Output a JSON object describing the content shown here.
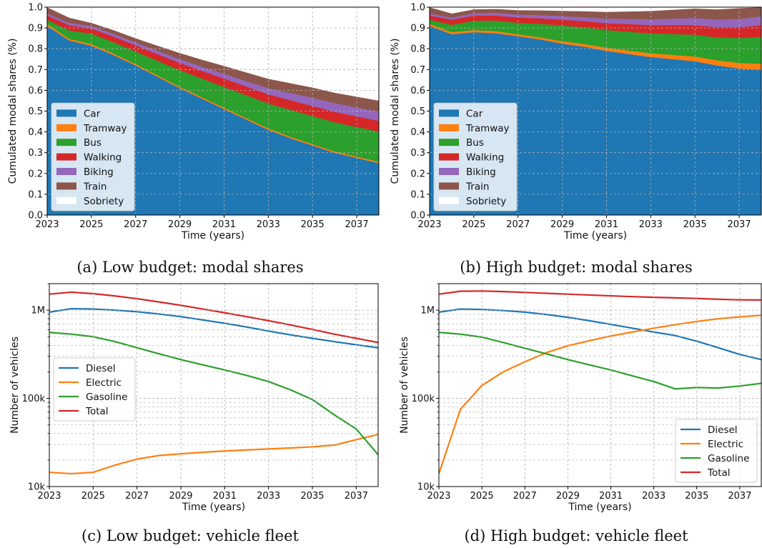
{
  "chart_data": [
    {
      "type": "area",
      "stacked": true,
      "caption": "(a) Low budget: modal shares",
      "xlabel": "Time (years)",
      "ylabel": "Cumulated modal shares (%)",
      "xlim": [
        2023,
        2038
      ],
      "ylim": [
        0,
        1
      ],
      "grid": true,
      "legend_position": "lower-left",
      "x": [
        2023,
        2024,
        2025,
        2026,
        2027,
        2028,
        2029,
        2030,
        2031,
        2032,
        2033,
        2034,
        2035,
        2036,
        2037,
        2038
      ],
      "x_ticks": [
        "2023",
        "2025",
        "2027",
        "2029",
        "2031",
        "2033",
        "2035",
        "2037"
      ],
      "y_ticks": [
        "0.0",
        "0.1",
        "0.2",
        "0.3",
        "0.4",
        "0.5",
        "0.6",
        "0.7",
        "0.8",
        "0.9",
        "1.0"
      ],
      "series": [
        {
          "name": "Car",
          "color": "#1f77b4",
          "values": [
            0.91,
            0.84,
            0.815,
            0.77,
            0.72,
            0.665,
            0.61,
            0.56,
            0.51,
            0.46,
            0.41,
            0.37,
            0.335,
            0.3,
            0.275,
            0.25
          ]
        },
        {
          "name": "Tramway",
          "color": "#ff7f0e",
          "values": [
            0.01,
            0.008,
            0.008,
            0.007,
            0.007,
            0.007,
            0.007,
            0.007,
            0.007,
            0.007,
            0.007,
            0.007,
            0.007,
            0.007,
            0.007,
            0.007
          ]
        },
        {
          "name": "Bus",
          "color": "#2ca02c",
          "values": [
            0.02,
            0.04,
            0.05,
            0.055,
            0.06,
            0.07,
            0.08,
            0.09,
            0.1,
            0.11,
            0.12,
            0.13,
            0.135,
            0.14,
            0.142,
            0.145
          ]
        },
        {
          "name": "Walking",
          "color": "#d62728",
          "values": [
            0.02,
            0.025,
            0.025,
            0.027,
            0.03,
            0.032,
            0.035,
            0.037,
            0.04,
            0.042,
            0.044,
            0.046,
            0.048,
            0.05,
            0.051,
            0.052
          ]
        },
        {
          "name": "Biking",
          "color": "#9467bd",
          "values": [
            0.01,
            0.012,
            0.012,
            0.013,
            0.014,
            0.016,
            0.018,
            0.02,
            0.023,
            0.026,
            0.03,
            0.035,
            0.04,
            0.042,
            0.043,
            0.044
          ]
        },
        {
          "name": "Train",
          "color": "#8c564b",
          "values": [
            0.03,
            0.025,
            0.015,
            0.018,
            0.02,
            0.025,
            0.03,
            0.034,
            0.038,
            0.042,
            0.045,
            0.047,
            0.049,
            0.05,
            0.052,
            0.053
          ]
        },
        {
          "name": "Sobriety",
          "color": "#ffffff",
          "values": [
            0.0,
            0.05,
            0.075,
            0.11,
            0.149,
            0.185,
            0.22,
            0.252,
            0.282,
            0.313,
            0.344,
            0.365,
            0.386,
            0.411,
            0.43,
            0.449
          ]
        }
      ]
    },
    {
      "type": "area",
      "stacked": true,
      "caption": "(b) High budget: modal shares",
      "xlabel": "Time (years)",
      "ylabel": "Cumulated modal shares (%)",
      "xlim": [
        2023,
        2038
      ],
      "ylim": [
        0,
        1
      ],
      "grid": true,
      "legend_position": "lower-left",
      "x": [
        2023,
        2024,
        2025,
        2026,
        2027,
        2028,
        2029,
        2030,
        2031,
        2032,
        2033,
        2034,
        2035,
        2036,
        2037,
        2038
      ],
      "x_ticks": [
        "2023",
        "2025",
        "2027",
        "2029",
        "2031",
        "2033",
        "2035",
        "2037"
      ],
      "y_ticks": [
        "0.0",
        "0.1",
        "0.2",
        "0.3",
        "0.4",
        "0.5",
        "0.6",
        "0.7",
        "0.8",
        "0.9",
        "1.0"
      ],
      "series": [
        {
          "name": "Car",
          "color": "#1f77b4",
          "values": [
            0.91,
            0.87,
            0.88,
            0.875,
            0.86,
            0.845,
            0.825,
            0.81,
            0.79,
            0.775,
            0.76,
            0.75,
            0.74,
            0.72,
            0.705,
            0.7
          ]
        },
        {
          "name": "Tramway",
          "color": "#ff7f0e",
          "values": [
            0.01,
            0.01,
            0.01,
            0.01,
            0.01,
            0.01,
            0.012,
            0.013,
            0.015,
            0.017,
            0.019,
            0.021,
            0.023,
            0.025,
            0.027,
            0.028
          ]
        },
        {
          "name": "Bus",
          "color": "#2ca02c",
          "values": [
            0.02,
            0.035,
            0.045,
            0.05,
            0.055,
            0.065,
            0.075,
            0.08,
            0.085,
            0.09,
            0.095,
            0.1,
            0.105,
            0.11,
            0.12,
            0.13
          ]
        },
        {
          "name": "Walking",
          "color": "#d62728",
          "values": [
            0.02,
            0.025,
            0.025,
            0.025,
            0.026,
            0.027,
            0.028,
            0.03,
            0.033,
            0.037,
            0.04,
            0.043,
            0.046,
            0.049,
            0.052,
            0.055
          ]
        },
        {
          "name": "Biking",
          "color": "#9467bd",
          "values": [
            0.01,
            0.01,
            0.012,
            0.013,
            0.014,
            0.015,
            0.017,
            0.019,
            0.022,
            0.025,
            0.028,
            0.031,
            0.034,
            0.037,
            0.04,
            0.043
          ]
        },
        {
          "name": "Train",
          "color": "#8c564b",
          "values": [
            0.03,
            0.02,
            0.018,
            0.019,
            0.021,
            0.023,
            0.026,
            0.029,
            0.033,
            0.036,
            0.04,
            0.043,
            0.046,
            0.049,
            0.052,
            0.044
          ]
        },
        {
          "name": "Sobriety",
          "color": "#ffffff",
          "values": [
            0.0,
            0.03,
            0.01,
            0.008,
            0.014,
            0.015,
            0.017,
            0.019,
            0.022,
            0.02,
            0.018,
            0.012,
            0.006,
            0.01,
            0.004,
            0.0
          ]
        }
      ]
    },
    {
      "type": "line",
      "caption": "(c) Low budget: vehicle fleet",
      "xlabel": "Time (years)",
      "ylabel": "Number of vehicles",
      "y_scale": "log",
      "xlim": [
        2023,
        2038
      ],
      "ylim": [
        10000,
        2000000
      ],
      "grid": true,
      "legend_position": "center-left",
      "x": [
        2023,
        2024,
        2025,
        2026,
        2027,
        2028,
        2029,
        2030,
        2031,
        2032,
        2033,
        2034,
        2035,
        2036,
        2037,
        2038
      ],
      "x_ticks": [
        "2023",
        "2025",
        "2027",
        "2029",
        "2031",
        "2033",
        "2035",
        "2037"
      ],
      "y_ticks": [
        {
          "value": 10000,
          "label": "10k"
        },
        {
          "value": 100000,
          "label": "100k"
        },
        {
          "value": 1000000,
          "label": "1M"
        }
      ],
      "series": [
        {
          "name": "Diesel",
          "color": "#1f77b4",
          "values": [
            950000,
            1040000,
            1030000,
            1000000,
            960000,
            905000,
            845000,
            775000,
            710000,
            645000,
            580000,
            525000,
            480000,
            440000,
            405000,
            375000
          ]
        },
        {
          "name": "Electric",
          "color": "#ff7f0e",
          "values": [
            14500,
            14000,
            14500,
            17500,
            20500,
            22500,
            23500,
            24500,
            25300,
            26000,
            26700,
            27400,
            28200,
            29500,
            34000,
            39000
          ]
        },
        {
          "name": "Gasoline",
          "color": "#2ca02c",
          "values": [
            560000,
            535000,
            500000,
            440000,
            375000,
            320000,
            275000,
            240000,
            210000,
            182000,
            155000,
            125000,
            97000,
            65000,
            45000,
            23000
          ]
        },
        {
          "name": "Total",
          "color": "#d62728",
          "values": [
            1520000,
            1600000,
            1540000,
            1450000,
            1350000,
            1240000,
            1135000,
            1030000,
            935000,
            845000,
            760000,
            680000,
            605000,
            535000,
            480000,
            430000
          ]
        }
      ]
    },
    {
      "type": "line",
      "caption": "(d) High budget: vehicle fleet",
      "xlabel": "Time (years)",
      "ylabel": "Number of vehicles",
      "y_scale": "log",
      "xlim": [
        2023,
        2038
      ],
      "ylim": [
        10000,
        2000000
      ],
      "grid": true,
      "legend_position": "lower-right",
      "x": [
        2023,
        2024,
        2025,
        2026,
        2027,
        2028,
        2029,
        2030,
        2031,
        2032,
        2033,
        2034,
        2035,
        2036,
        2037,
        2038
      ],
      "x_ticks": [
        "2023",
        "2025",
        "2027",
        "2029",
        "2031",
        "2033",
        "2035",
        "2037"
      ],
      "y_ticks": [
        {
          "value": 10000,
          "label": "10k"
        },
        {
          "value": 100000,
          "label": "100k"
        },
        {
          "value": 1000000,
          "label": "1M"
        }
      ],
      "series": [
        {
          "name": "Diesel",
          "color": "#1f77b4",
          "values": [
            950000,
            1030000,
            1020000,
            990000,
            950000,
            895000,
            830000,
            760000,
            690000,
            625000,
            565000,
            515000,
            445000,
            375000,
            315000,
            275000
          ]
        },
        {
          "name": "Electric",
          "color": "#ff7f0e",
          "values": [
            14000,
            75000,
            140000,
            200000,
            260000,
            330000,
            395000,
            450000,
            510000,
            565000,
            625000,
            685000,
            745000,
            800000,
            840000,
            875000
          ]
        },
        {
          "name": "Gasoline",
          "color": "#2ca02c",
          "values": [
            560000,
            535000,
            495000,
            430000,
            370000,
            320000,
            275000,
            240000,
            210000,
            180000,
            155000,
            128000,
            133000,
            131000,
            138000,
            148000
          ]
        },
        {
          "name": "Total",
          "color": "#d62728",
          "values": [
            1520000,
            1640000,
            1650000,
            1625000,
            1590000,
            1555000,
            1520000,
            1485000,
            1455000,
            1425000,
            1400000,
            1380000,
            1360000,
            1330000,
            1310000,
            1305000
          ]
        }
      ]
    }
  ]
}
